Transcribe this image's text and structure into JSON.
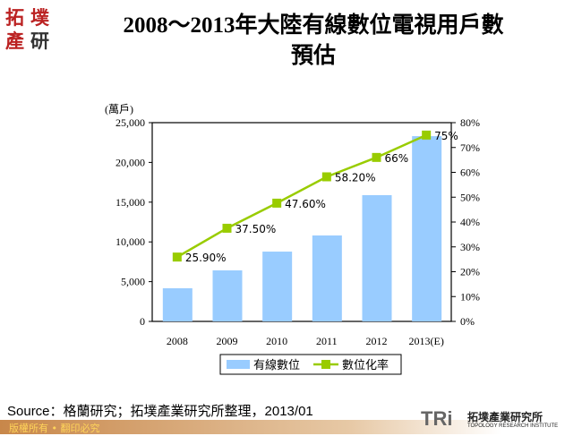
{
  "title": "2008～2013年大陸有線數位電視用戶數預估",
  "title_lines": [
    "2008～2013年大陸有線數位電視用戶數",
    "預估"
  ],
  "logo_text": "拓墣產研",
  "chart_data": {
    "type": "bar+line",
    "categories": [
      "2008",
      "2009",
      "2010",
      "2011",
      "2012",
      "2013(E)"
    ],
    "y_left": {
      "label": "(萬戶)",
      "range": [
        0,
        25000
      ],
      "ticks": [
        "0",
        "5,000",
        "10,000",
        "15,000",
        "20,000",
        "25,000"
      ]
    },
    "y_right": {
      "range": [
        0,
        80
      ],
      "ticks": [
        "0%",
        "10%",
        "20%",
        "30%",
        "40%",
        "50%",
        "60%",
        "70%",
        "80%"
      ]
    },
    "series": [
      {
        "name": "有線數位",
        "type": "bar",
        "color": "#99ccff",
        "values": [
          4170,
          6420,
          8780,
          10810,
          15880,
          23300
        ]
      },
      {
        "name": "數位化率",
        "type": "line",
        "color": "#99cc00",
        "axis": "right",
        "values": [
          25.9,
          37.5,
          47.6,
          58.2,
          66,
          75
        ],
        "labels": [
          "25.90%",
          "37.50%",
          "47.60%",
          "58.20%",
          "66%",
          "75%"
        ]
      }
    ],
    "legend": "bottom",
    "grid": false
  },
  "source": "Source：格蘭研究；拓墣產業研究所整理，2013/01",
  "footer": "版權所有 • 翻印必究",
  "brand": {
    "mark": "TRi",
    "name": "拓墣產業研究所",
    "sub": "TOPOLOGY RESEARCH INSTITUTE"
  }
}
